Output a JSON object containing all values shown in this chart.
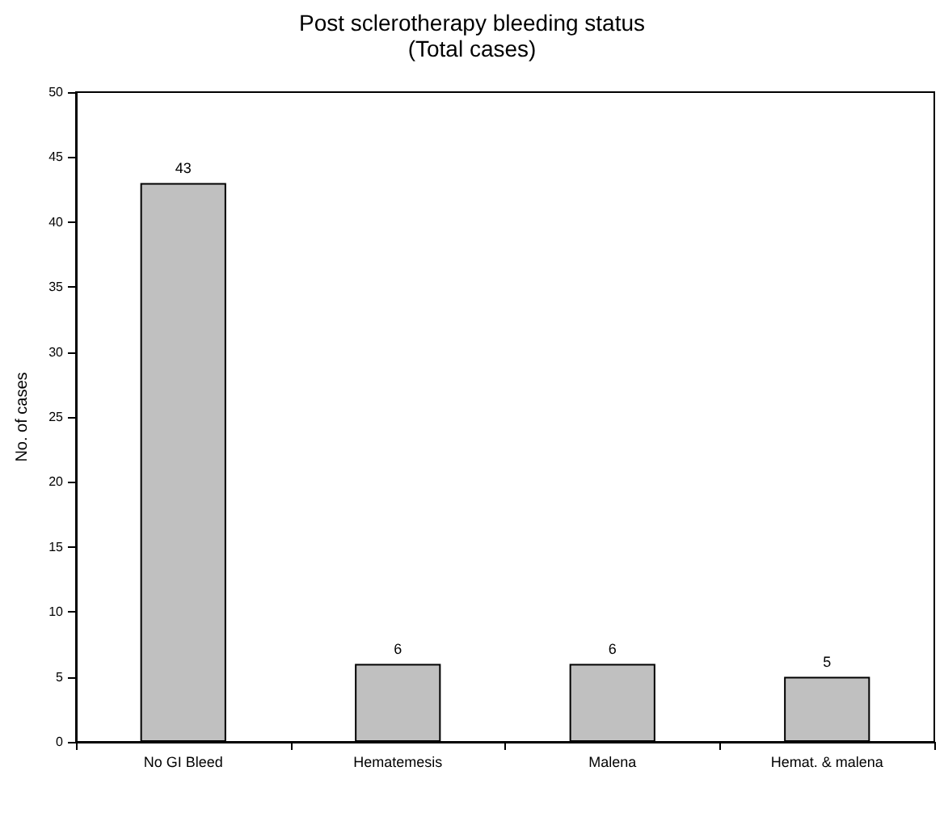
{
  "chart_data": {
    "type": "bar",
    "title": "Post sclerotherapy bleeding status",
    "subtitle": "(Total cases)",
    "ylabel": "No. of cases",
    "categories": [
      "No GI Bleed",
      "Hematemesis",
      "Malena",
      "Hemat. & malena"
    ],
    "values": [
      43,
      6,
      6,
      5
    ],
    "color": "#c0c0c0",
    "ylim": [
      0,
      50
    ],
    "yticks": [
      0,
      5,
      10,
      15,
      20,
      25,
      30,
      35,
      40,
      45,
      50
    ],
    "grid": false,
    "data_labels": true
  }
}
